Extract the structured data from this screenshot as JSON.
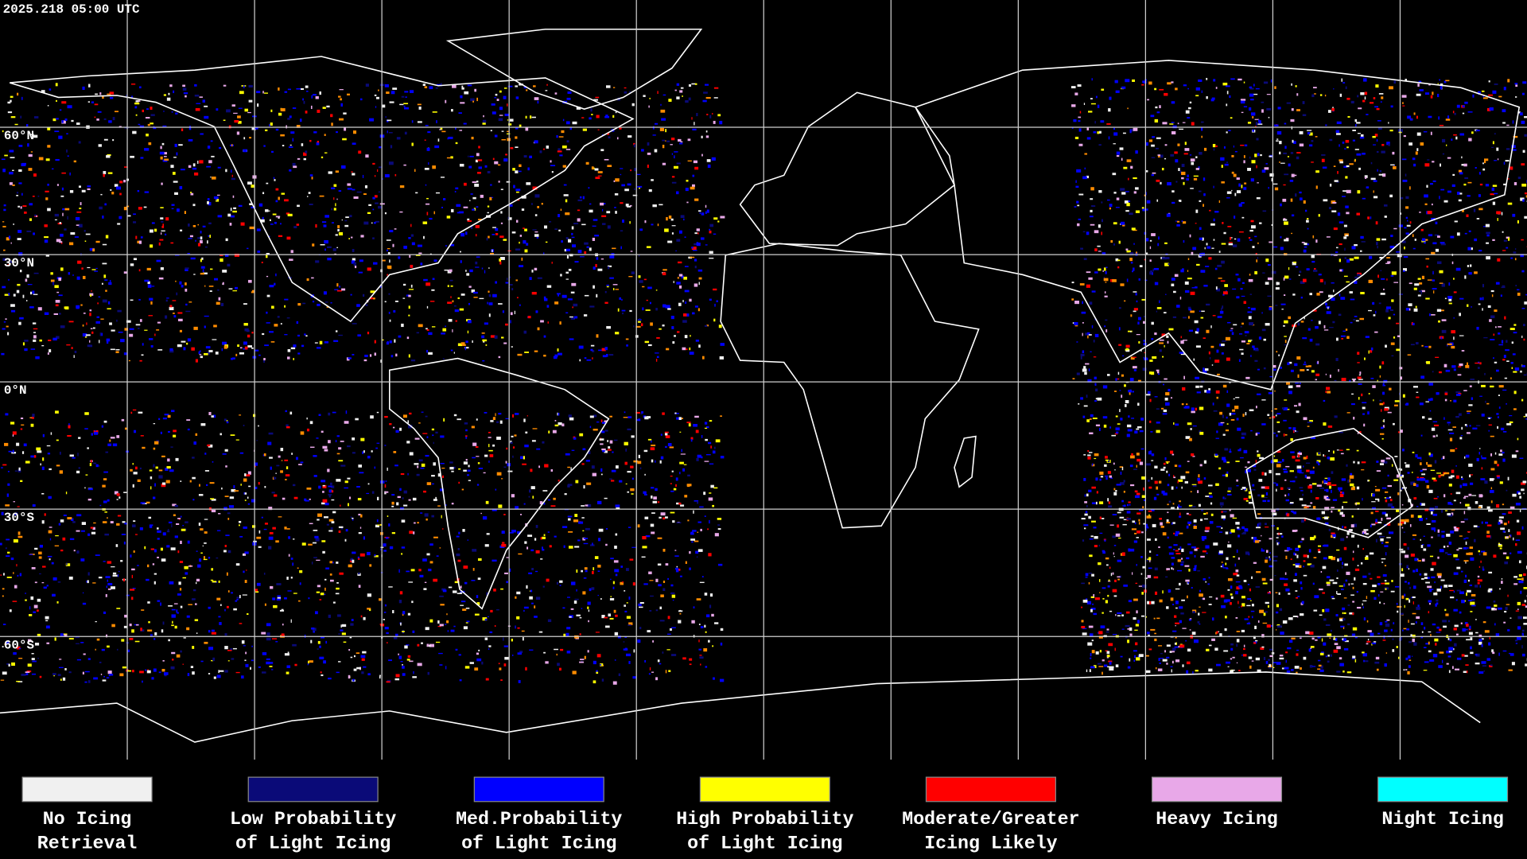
{
  "header": {
    "timestamp": "2025.218 05:00 UTC"
  },
  "latitude_labels": [
    "60°N",
    "30°N",
    "0°N",
    "30°S",
    "60°S"
  ],
  "legend": [
    {
      "label": [
        "No Icing",
        "Retrieval"
      ],
      "color": "#f0f0f0"
    },
    {
      "label": [
        "Low Probability",
        "of Light Icing"
      ],
      "color": "#0a0a78"
    },
    {
      "label": [
        "Med.Probability",
        "of Light Icing"
      ],
      "color": "#0000ff"
    },
    {
      "label": [
        "High Probability",
        "of Light Icing"
      ],
      "color": "#ffff00"
    },
    {
      "label": [
        "Moderate/Greater",
        "Icing Likely"
      ],
      "color": "#ff0000"
    },
    {
      "label": [
        "Heavy Icing"
      ],
      "color": "#e8a8e8"
    },
    {
      "label": [
        "Night Icing"
      ],
      "color": "#00ffff"
    }
  ]
}
